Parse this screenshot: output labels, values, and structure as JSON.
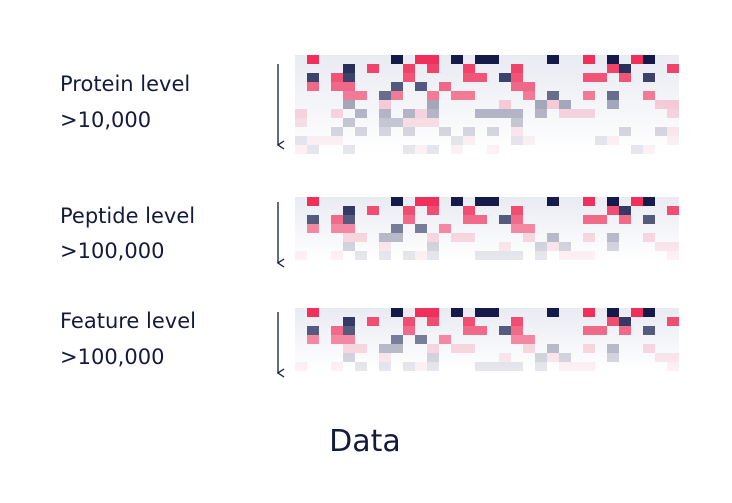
{
  "levels": [
    {
      "label": "Protein level",
      "count": ">10,000"
    },
    {
      "label": "Peptide level",
      "count": ">100,000"
    },
    {
      "label": "Feature level",
      "count": ">100,000"
    }
  ],
  "footer": "Data"
}
